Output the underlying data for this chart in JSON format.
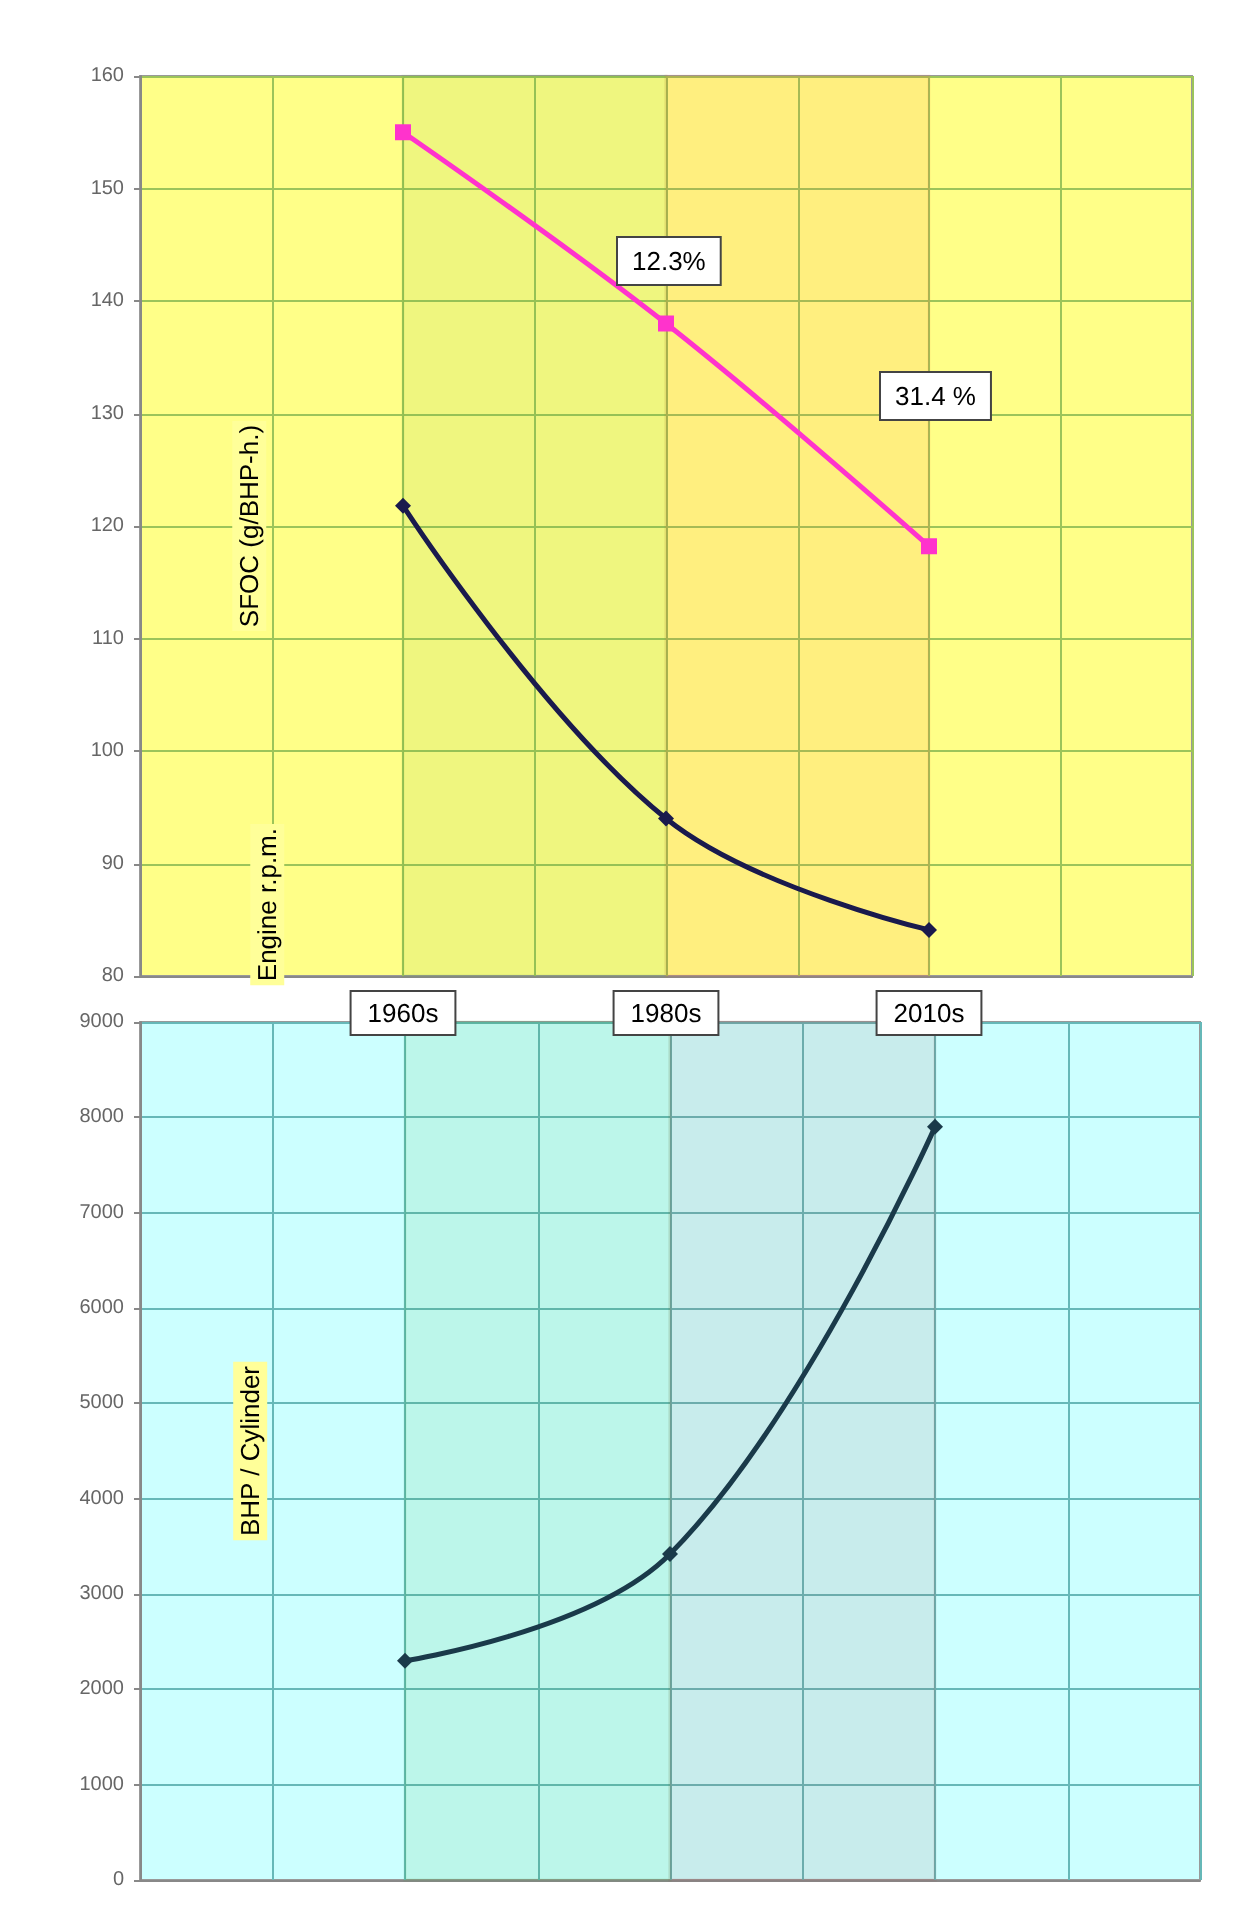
{
  "chart_data": [
    {
      "type": "line",
      "ylabel": "SFOC (g/BHP-h.)",
      "categories": [
        null,
        null,
        "1960s",
        null,
        "1980s",
        null,
        "2010s",
        null,
        null
      ],
      "series": [
        {
          "color": "#ff33cc",
          "marker": "square",
          "values": [
            null,
            null,
            155,
            null,
            138,
            null,
            118.2,
            null,
            null
          ]
        },
        {
          "color": "#1a1a4d",
          "marker": "diamond",
          "values": [
            null,
            null,
            121.8,
            null,
            94,
            null,
            84.1,
            null,
            null
          ]
        }
      ],
      "ylim": [
        80,
        160
      ],
      "yticks": [
        80,
        90,
        100,
        110,
        120,
        130,
        140,
        150,
        160
      ],
      "grid": true,
      "bands": [
        {
          "axis": "x",
          "from": "1960s",
          "to": "1980s",
          "color": "#66aa33"
        },
        {
          "axis": "x",
          "from": "1980s",
          "to": "2010s",
          "color": "#ff6633"
        }
      ],
      "annotations": [
        "12.3%",
        "31.4 %",
        "Engine r.p.m."
      ]
    },
    {
      "type": "line",
      "ylabel": "BHP / Cylinder",
      "categories": [
        null,
        null,
        "1960s",
        null,
        "1980s",
        null,
        "2010s",
        null,
        null
      ],
      "series": [
        {
          "color": "#1a3a4a",
          "marker": "diamond",
          "values": [
            null,
            null,
            2300,
            null,
            3420,
            null,
            7900,
            null,
            null
          ]
        }
      ],
      "ylim": [
        0,
        9000
      ],
      "yticks": [
        0,
        1000,
        2000,
        3000,
        4000,
        5000,
        6000,
        7000,
        8000,
        9000
      ],
      "grid": true,
      "tick_labels": "y",
      "bands": [
        {
          "axis": "x",
          "from": "1960s",
          "to": "1980s",
          "color": "#33aa33"
        },
        {
          "axis": "x",
          "from": "1980s",
          "to": "2010s",
          "color": "#aa4444"
        }
      ]
    }
  ]
}
